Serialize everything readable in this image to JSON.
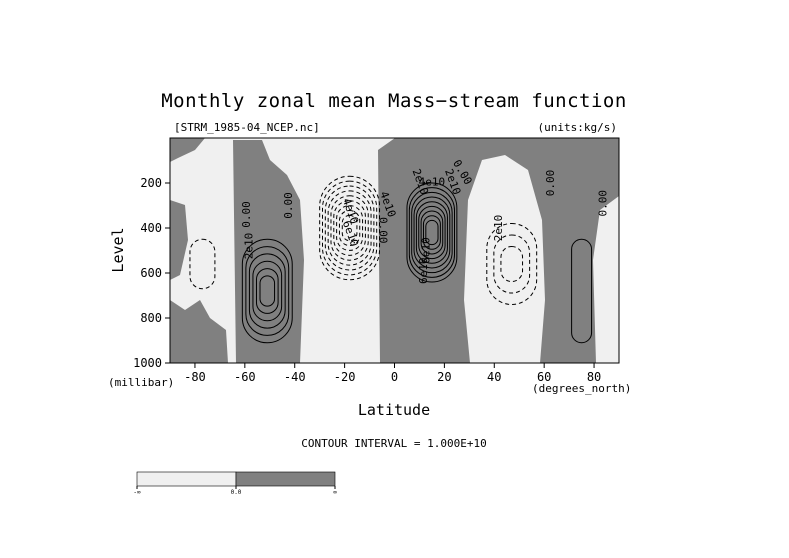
{
  "chart_data": {
    "type": "contour",
    "title": "Monthly zonal mean Mass−stream function",
    "file_label": "[STRM_1985-04_NCEP.nc]",
    "units_label": "(units:kg/s)",
    "xlabel": "Latitude",
    "xunits": "(degrees_north)",
    "ylabel": "Level",
    "yunits": "(millibar)",
    "xlim": [
      -90,
      90
    ],
    "ylim": [
      1000,
      0
    ],
    "x_ticks": [
      -80,
      -60,
      -40,
      -20,
      0,
      20,
      40,
      60,
      80
    ],
    "y_ticks": [
      200,
      400,
      600,
      800,
      1000
    ],
    "contour_interval_text": "CONTOUR INTERVAL = 1.000E+10",
    "contour_interval": 10000000000.0,
    "contour_labels": [
      "0.00",
      "2e10",
      "4e10",
      "6e10",
      "0.00",
      "4e10",
      "6e10",
      "2e10",
      "0.00",
      "4e10",
      "6e10",
      "2e10",
      "0.00",
      "2e10",
      "0.00",
      "0.00"
    ],
    "colorbar": {
      "labels": [
        "-∞",
        "0.0",
        "∞"
      ],
      "colors": [
        "#f0f0f0",
        "#808080"
      ]
    },
    "cells": [
      {
        "sign": "pos",
        "center": [
          -51,
          680
        ],
        "width": 10,
        "height": 230,
        "levels": 6
      },
      {
        "sign": "neg",
        "center": [
          -18,
          400
        ],
        "width": 12,
        "height": 230,
        "levels": 9
      },
      {
        "sign": "pos",
        "center": [
          15,
          420
        ],
        "width": 10,
        "height": 220,
        "levels": 9
      },
      {
        "sign": "neg",
        "center": [
          47,
          560
        ],
        "width": 10,
        "height": 180,
        "levels": 3
      },
      {
        "sign": "neg",
        "center": [
          -77,
          560
        ],
        "width": 5,
        "height": 110,
        "levels": 1
      },
      {
        "sign": "pos",
        "center": [
          75,
          680
        ],
        "width": 4,
        "height": 230,
        "levels": 1
      }
    ]
  }
}
